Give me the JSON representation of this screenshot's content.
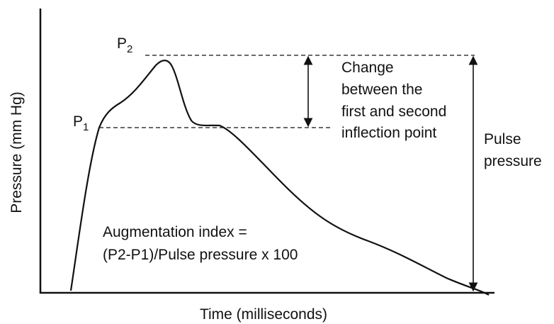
{
  "labels": {
    "p2": {
      "letter": "P",
      "subscript": "2"
    },
    "p1": {
      "letter": "P",
      "subscript": "1"
    },
    "y_axis": "Pressure (mm Hg)",
    "x_axis": "Time (milliseconds)",
    "change": [
      "Change",
      "between the",
      "first and second",
      "inflection point"
    ],
    "pulse_pressure": [
      "Pulse",
      "pressure"
    ],
    "augmentation": [
      "Augmentation index =",
      "(P2-P1)/Pulse pressure x 100"
    ]
  }
}
